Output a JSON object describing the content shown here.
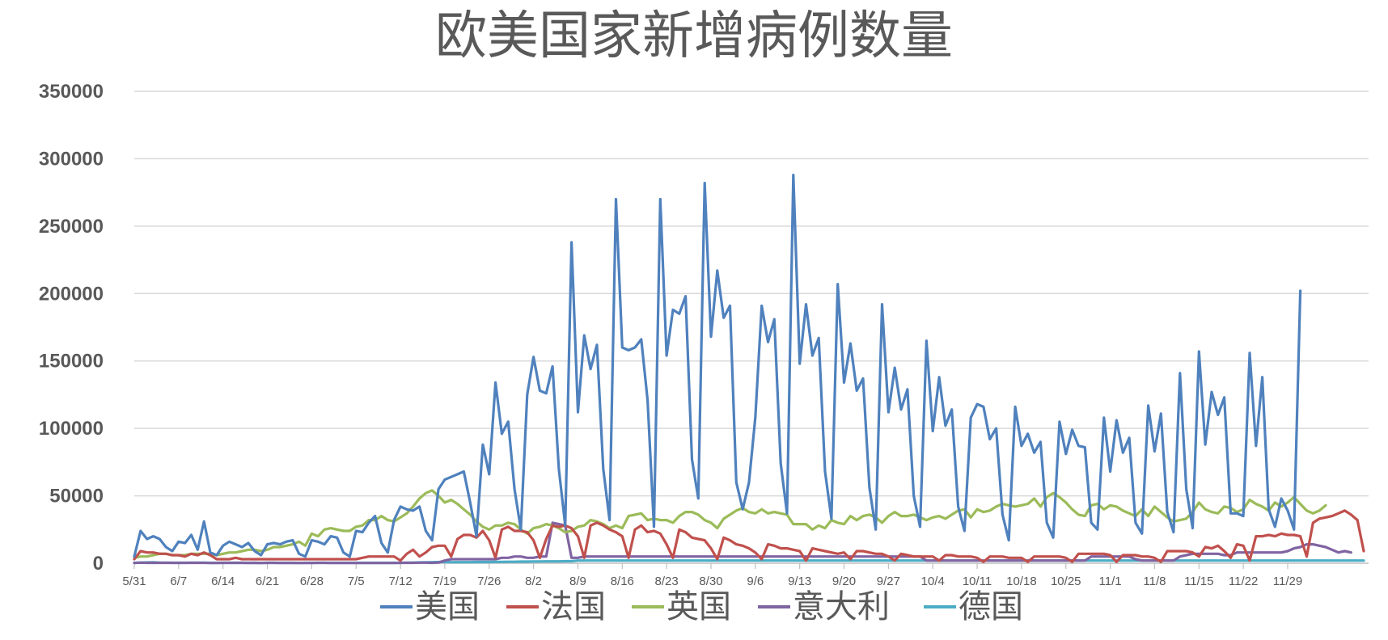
{
  "chart_data": {
    "type": "line",
    "title": "欧美国家新增病例数量",
    "xlabel": "",
    "ylabel": "",
    "ylim": [
      0,
      350000
    ],
    "yticks": [
      0,
      50000,
      100000,
      150000,
      200000,
      250000,
      300000,
      350000
    ],
    "ytick_labels": [
      "0",
      "50000",
      "100000",
      "150000",
      "200000",
      "250000",
      "300000",
      "350000"
    ],
    "xtick_labels": [
      "5/31",
      "6/7",
      "6/14",
      "6/21",
      "6/28",
      "7/5",
      "7/12",
      "7/19",
      "7/26",
      "8/2",
      "8/9",
      "8/16",
      "8/23",
      "8/30",
      "9/6",
      "9/13",
      "9/20",
      "9/27",
      "10/4",
      "10/11",
      "10/18",
      "10/25",
      "11/1",
      "11/8",
      "11/15",
      "11/22",
      "11/29"
    ],
    "grid": true,
    "legend_position": "bottom",
    "series": [
      {
        "name": "美国",
        "color": "#4F81BD",
        "values": [
          5000,
          24000,
          18000,
          20000,
          18000,
          12000,
          9000,
          16000,
          15000,
          21000,
          10000,
          31000,
          8000,
          6000,
          13000,
          16000,
          14000,
          12000,
          15000,
          9000,
          6000,
          14000,
          15000,
          14000,
          16000,
          17000,
          7000,
          5000,
          17000,
          16000,
          14000,
          20000,
          19000,
          8000,
          5000,
          24000,
          23000,
          30000,
          35000,
          15000,
          8000,
          32000,
          42000,
          40000,
          39000,
          42000,
          24000,
          17000,
          55000,
          62000,
          64000,
          66000,
          68000,
          45000,
          20000,
          88000,
          66000,
          134000,
          96000,
          105000,
          55000,
          25000,
          125000,
          153000,
          128000,
          126000,
          146000,
          70000,
          28000,
          238000,
          112000,
          169000,
          144000,
          162000,
          70000,
          32000,
          270000,
          160000,
          158000,
          160000,
          166000,
          121000,
          27000,
          270000,
          154000,
          188000,
          185000,
          198000,
          77000,
          48000,
          282000,
          168000,
          217000,
          182000,
          191000,
          60000,
          40000,
          60000,
          108000,
          191000,
          164000,
          181000,
          74000,
          37000,
          288000,
          148000,
          192000,
          154000,
          167000,
          68000,
          33000,
          207000,
          134000,
          163000,
          128000,
          137000,
          56000,
          25000,
          192000,
          112000,
          145000,
          114000,
          129000,
          50000,
          27000,
          165000,
          98000,
          138000,
          102000,
          114000,
          42000,
          24000,
          108000,
          118000,
          116000,
          92000,
          100000,
          36000,
          17000,
          116000,
          87000,
          96000,
          82000,
          90000,
          30000,
          19000,
          105000,
          81000,
          99000,
          87000,
          86000,
          30000,
          25000,
          108000,
          68000,
          106000,
          82000,
          93000,
          30000,
          22000,
          117000,
          83000,
          111000,
          38000,
          23000,
          141000,
          55000,
          26000,
          157000,
          88000,
          127000,
          110000,
          123000,
          37000,
          37000,
          35000,
          156000,
          87000,
          138000,
          40000,
          27000,
          48000,
          39000,
          25000,
          202000
        ]
      },
      {
        "name": "法国",
        "color": "#C0504D",
        "values": [
          3000,
          9000,
          8000,
          8000,
          7000,
          7000,
          6000,
          6000,
          5000,
          7000,
          6000,
          8000,
          6000,
          3000,
          3000,
          3000,
          4000,
          3000,
          3000,
          3000,
          3000,
          3000,
          3000,
          3000,
          3000,
          3000,
          3000,
          3000,
          3000,
          3000,
          3000,
          3000,
          3000,
          3000,
          3000,
          3000,
          4000,
          5000,
          5000,
          5000,
          5000,
          5000,
          2000,
          7000,
          10000,
          5000,
          8000,
          12000,
          13000,
          13000,
          5000,
          18000,
          21000,
          21000,
          19000,
          24000,
          17000,
          4000,
          25000,
          27000,
          24000,
          24000,
          23000,
          17000,
          4000,
          18000,
          28000,
          27000,
          28000,
          26000,
          20000,
          4000,
          28000,
          30000,
          28000,
          25000,
          23000,
          20000,
          4000,
          25000,
          28000,
          23000,
          24000,
          22000,
          14000,
          4000,
          25000,
          23000,
          19000,
          18000,
          17000,
          11000,
          3000,
          19000,
          17000,
          14000,
          13000,
          11000,
          8000,
          3000,
          14000,
          13000,
          11000,
          11000,
          10000,
          9000,
          2000,
          11000,
          10000,
          9000,
          8000,
          7000,
          8000,
          3000,
          9000,
          9000,
          8000,
          7000,
          7000,
          5000,
          2000,
          7000,
          6000,
          5000,
          5000,
          5000,
          5000,
          2000,
          6000,
          6000,
          5000,
          5000,
          5000,
          4000,
          1000,
          5000,
          5000,
          5000,
          4000,
          4000,
          4000,
          1000,
          5000,
          5000,
          5000,
          5000,
          5000,
          4000,
          1000,
          7000,
          7000,
          7000,
          7000,
          7000,
          6000,
          1000,
          6000,
          6000,
          6000,
          5000,
          5000,
          4000,
          1000,
          9000,
          9000,
          9000,
          9000,
          8000,
          5000,
          12000,
          11000,
          13000,
          9000,
          4000,
          14000,
          13000,
          2000,
          20000,
          20000,
          21000,
          20000,
          22000,
          21000,
          21000,
          20000,
          5000,
          30000,
          33000,
          34000,
          35000,
          37000,
          39000,
          36000,
          32000,
          9000
        ]
      },
      {
        "name": "英国",
        "color": "#9BBB59",
        "values": [
          4000,
          5000,
          5000,
          6000,
          7000,
          7000,
          6000,
          6000,
          6000,
          7000,
          7000,
          7000,
          7000,
          6000,
          7000,
          8000,
          8000,
          9000,
          10000,
          10000,
          9000,
          10000,
          12000,
          12000,
          13000,
          14000,
          16000,
          13000,
          22000,
          20000,
          25000,
          26000,
          25000,
          24000,
          24000,
          27000,
          28000,
          32000,
          32000,
          35000,
          32000,
          31000,
          34000,
          37000,
          42000,
          48000,
          52000,
          54000,
          50000,
          45000,
          47000,
          44000,
          40000,
          36000,
          31000,
          27000,
          25000,
          28000,
          28000,
          30000,
          29000,
          25000,
          22000,
          26000,
          27000,
          29000,
          28000,
          26000,
          23000,
          24000,
          27000,
          28000,
          32000,
          31000,
          29000,
          26000,
          28000,
          26000,
          35000,
          36000,
          37000,
          32000,
          33000,
          32000,
          32000,
          30000,
          35000,
          38000,
          38000,
          36000,
          32000,
          30000,
          26000,
          33000,
          36000,
          39000,
          41000,
          38000,
          37000,
          40000,
          37000,
          38000,
          37000,
          36000,
          29000,
          29000,
          29000,
          25000,
          28000,
          26000,
          32000,
          30000,
          29000,
          35000,
          32000,
          35000,
          36000,
          34000,
          30000,
          35000,
          38000,
          35000,
          35000,
          36000,
          34000,
          32000,
          34000,
          35000,
          33000,
          36000,
          39000,
          40000,
          34000,
          40000,
          38000,
          39000,
          42000,
          44000,
          43000,
          42000,
          43000,
          44000,
          48000,
          42000,
          49000,
          52000,
          49000,
          45000,
          40000,
          36000,
          35000,
          43000,
          44000,
          40000,
          43000,
          42000,
          39000,
          37000,
          35000,
          40000,
          35000,
          42000,
          38000,
          34000,
          31000,
          32000,
          33000,
          38000,
          45000,
          40000,
          38000,
          37000,
          42000,
          41000,
          38000,
          40000,
          47000,
          44000,
          42000,
          39000,
          45000,
          42000,
          45000,
          49000,
          44000,
          39000,
          37000,
          39000,
          43000
        ]
      },
      {
        "name": "意大利",
        "color": "#8064A2",
        "values": [
          200,
          400,
          300,
          300,
          300,
          300,
          300,
          300,
          300,
          300,
          300,
          300,
          200,
          200,
          300,
          300,
          300,
          300,
          200,
          300,
          200,
          300,
          300,
          200,
          200,
          200,
          200,
          200,
          200,
          300,
          300,
          200,
          200,
          200,
          200,
          200,
          200,
          200,
          200,
          200,
          200,
          200,
          300,
          300,
          300,
          400,
          400,
          300,
          500,
          2000,
          3000,
          3000,
          3000,
          3000,
          3000,
          3000,
          3000,
          3000,
          4000,
          4000,
          5000,
          5000,
          4000,
          4000,
          5000,
          5000,
          30000,
          29000,
          28000,
          4000,
          4000,
          5000,
          5000,
          5000,
          5000,
          5000,
          5000,
          5000,
          5000,
          5000,
          5000,
          5000,
          5000,
          5000,
          5000,
          5000,
          5000,
          5000,
          5000,
          5000,
          5000,
          5000,
          5000,
          5000,
          5000,
          5000,
          5000,
          5000,
          5000,
          5000,
          5000,
          5000,
          5000,
          5000,
          5000,
          5000,
          5000,
          5000,
          5000,
          5000,
          5000,
          5000,
          5000,
          5000,
          5000,
          5000,
          5000,
          5000,
          5000,
          5000,
          5000,
          5000,
          5000,
          5000,
          5000,
          2000,
          2000,
          2000,
          2000,
          2000,
          2000,
          2000,
          2000,
          2000,
          2000,
          2000,
          2000,
          2000,
          2000,
          2000,
          2000,
          2000,
          2000,
          2000,
          2000,
          2000,
          2000,
          2000,
          2000,
          2000,
          2000,
          5000,
          5000,
          5000,
          5000,
          5000,
          5000,
          5000,
          3000,
          2000,
          2000,
          2000,
          2000,
          2000,
          2000,
          5000,
          6000,
          7000,
          7000,
          7000,
          7000,
          7000,
          6000,
          6000,
          8000,
          8000,
          8000,
          8000,
          8000,
          8000,
          8000,
          8000,
          9000,
          11000,
          12000,
          14000,
          14000,
          13000,
          12000,
          10000,
          8000,
          9000,
          8000
        ]
      },
      {
        "name": "德国",
        "color": "#4BACC6",
        "values": [
          300,
          500,
          600,
          700,
          500,
          400,
          300,
          300,
          300,
          400,
          400,
          400,
          300,
          300,
          300,
          300,
          300,
          300,
          300,
          300,
          200,
          300,
          300,
          300,
          300,
          300,
          200,
          300,
          300,
          300,
          300,
          300,
          300,
          300,
          300,
          300,
          300,
          300,
          300,
          300,
          300,
          300,
          300,
          400,
          500,
          600,
          700,
          800,
          900,
          900,
          800,
          800,
          800,
          800,
          900,
          900,
          900,
          1000,
          1000,
          1100,
          1100,
          1200,
          1200,
          1300,
          1300,
          1400,
          1400,
          1400,
          1500,
          1500,
          2000,
          2000,
          2000,
          2000,
          2000,
          2000,
          2000,
          2000,
          2000,
          2000,
          2000,
          2000,
          2000,
          2000,
          2000,
          2000,
          2000,
          2000,
          2000,
          2000,
          2000,
          2000,
          2000,
          2000,
          2000,
          2000,
          2000,
          2000,
          2000,
          2000,
          2000,
          2000,
          2000,
          2000,
          2000,
          2000,
          2000,
          2000,
          2000,
          2000,
          2000,
          2000,
          2000,
          2000,
          2000,
          2000,
          2000,
          2000,
          2000,
          2000,
          2000,
          2000,
          2000,
          2000,
          2000,
          2000,
          2000,
          2000,
          2000,
          2000,
          2000,
          2000,
          2000,
          2000,
          2000,
          2000,
          2000,
          2000,
          2000,
          2000,
          2000,
          2000,
          2000,
          2000,
          2000,
          2000,
          2000,
          2000,
          2000,
          2000,
          2000,
          2000,
          2000,
          2000,
          2000,
          2000,
          2000,
          2000,
          2000,
          2000,
          2000,
          2000,
          2000,
          2000,
          2000,
          2000,
          2000,
          2000,
          2000,
          2000,
          2000,
          2000,
          2000,
          2000,
          2000,
          2000,
          2000,
          2000,
          2000,
          2000,
          2000,
          2000,
          2000,
          2000,
          2000,
          2000,
          2000,
          2000,
          2000,
          2000,
          2000,
          2000,
          2000,
          2000,
          2000
        ]
      }
    ]
  }
}
